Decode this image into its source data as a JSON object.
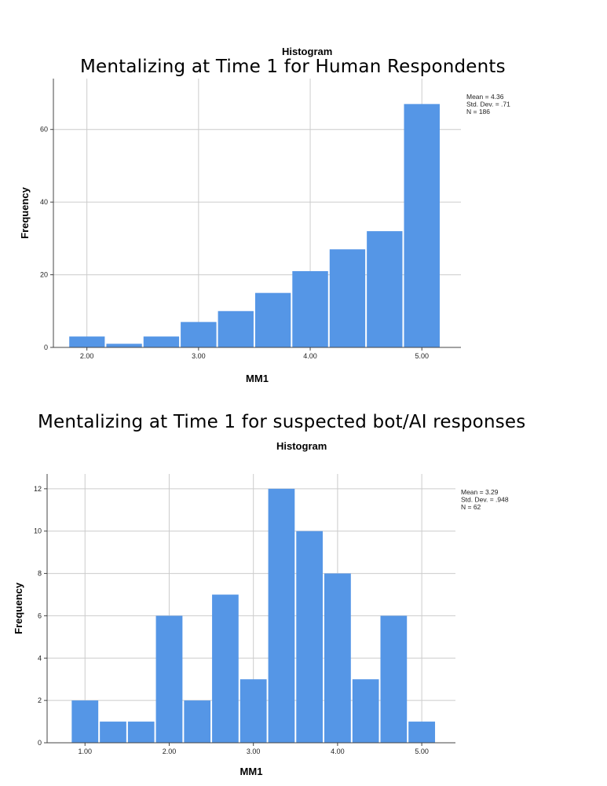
{
  "chart_data": [
    {
      "type": "bar",
      "chart_title": "Mentalizing at Time 1 for Human Respondents",
      "subtitle": "Histogram",
      "xlabel": "MM1",
      "ylabel": "Frequency",
      "bar_color": "#5596e6",
      "grid": true,
      "xlim": [
        1.7,
        5.35
      ],
      "ylim": [
        0,
        74
      ],
      "xticks": [
        2.0,
        3.0,
        4.0,
        5.0
      ],
      "xtick_labels": [
        "2.00",
        "3.00",
        "4.00",
        "5.00"
      ],
      "yticks": [
        0,
        20,
        40,
        60
      ],
      "ytick_labels": [
        "0",
        "20",
        "40",
        "60"
      ],
      "bin_edges": [
        1.835,
        2.167,
        2.5,
        2.833,
        3.167,
        3.5,
        3.833,
        4.167,
        4.5,
        4.833,
        5.167
      ],
      "values": [
        3,
        1,
        3,
        7,
        10,
        15,
        21,
        27,
        32,
        67
      ],
      "stats": [
        "Mean = 4.36",
        "Std. Dev. = .71",
        "N = 186"
      ],
      "legend_position": "top-right"
    },
    {
      "type": "bar",
      "chart_title": "Mentalizing at Time 1 for suspected bot/AI responses",
      "subtitle": "Histogram",
      "xlabel": "MM1",
      "ylabel": "Frequency",
      "bar_color": "#5596e6",
      "grid": true,
      "xlim": [
        0.55,
        5.4
      ],
      "ylim": [
        0,
        12.7
      ],
      "xticks": [
        1.0,
        2.0,
        3.0,
        4.0,
        5.0
      ],
      "xtick_labels": [
        "1.00",
        "2.00",
        "3.00",
        "4.00",
        "5.00"
      ],
      "yticks": [
        0,
        2,
        4,
        6,
        8,
        10,
        12
      ],
      "ytick_labels": [
        "0",
        "2",
        "4",
        "6",
        "8",
        "10",
        "12"
      ],
      "bin_edges": [
        0.833,
        1.167,
        1.5,
        1.833,
        2.167,
        2.5,
        2.833,
        3.167,
        3.5,
        3.833,
        4.167,
        4.5,
        4.833,
        5.167
      ],
      "values": [
        2,
        1,
        1,
        6,
        2,
        7,
        3,
        12,
        10,
        8,
        3,
        6,
        1
      ],
      "stats": [
        "Mean = 3.29",
        "Std. Dev. = .948",
        "N = 62"
      ],
      "legend_position": "top-right"
    }
  ]
}
